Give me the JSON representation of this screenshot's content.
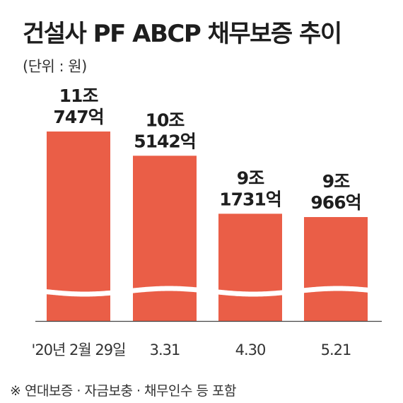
{
  "chart_data": {
    "type": "bar",
    "title": "건설사 PF ABCP 채무보증 추이",
    "unit_label": "(단위 : 원)",
    "categories": [
      "'20년 2월 29일",
      "3.31",
      "4.30",
      "5.21"
    ],
    "values": [
      110747,
      105142,
      91731,
      90966
    ],
    "value_labels": [
      [
        "11조",
        "747억"
      ],
      [
        "10조",
        "5142억"
      ],
      [
        "9조",
        "1731억"
      ],
      [
        "9조",
        "966억"
      ]
    ],
    "value_unit": "억원",
    "axis_break": true,
    "grid": false,
    "legend": "none",
    "bar_color": "#ea5e47",
    "footnote": "※ 연대보증 · 자금보충 · 채무인수 등 포함"
  }
}
